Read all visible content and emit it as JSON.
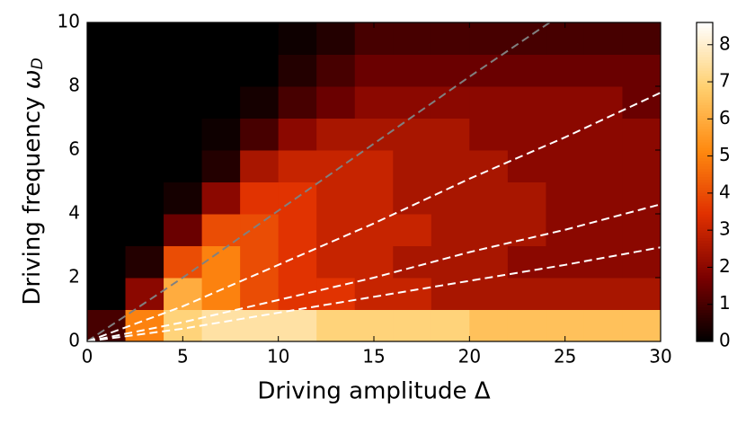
{
  "chart_data": {
    "type": "heatmap",
    "xlabel": "Driving amplitude Δ",
    "ylabel": {
      "text": "Driving frequency",
      "symbol": "ω",
      "subscript": "D"
    },
    "xbins": [
      0,
      2,
      4,
      6,
      8,
      10,
      12,
      14,
      16,
      18,
      20,
      22,
      24,
      26,
      28,
      30
    ],
    "ybins": [
      0,
      1,
      2,
      3,
      4,
      5,
      6,
      7,
      8,
      9,
      10
    ],
    "z": [
      [
        1,
        5,
        7,
        7.5,
        7.5,
        7.5,
        7,
        7,
        7,
        7,
        6.5,
        6.5,
        6.5,
        6.5,
        6.5
      ],
      [
        0,
        2,
        6,
        5,
        4,
        3.5,
        3.5,
        3,
        3,
        2.5,
        2.5,
        2.5,
        2.5,
        2.5,
        2.5
      ],
      [
        0,
        0.5,
        4,
        5,
        4,
        3.5,
        3,
        3,
        2.5,
        2.5,
        2.5,
        2,
        2,
        2,
        2
      ],
      [
        0,
        0,
        1.5,
        4,
        4,
        3.5,
        3,
        3,
        3,
        2.5,
        2.5,
        2.5,
        2,
        2,
        2
      ],
      [
        0,
        0,
        0.3,
        2,
        3.5,
        3.5,
        3,
        3,
        2.5,
        2.5,
        2.5,
        2.5,
        2,
        2,
        2
      ],
      [
        0,
        0,
        0,
        0.5,
        2.5,
        3,
        3,
        3,
        2.5,
        2.5,
        2.5,
        2,
        2,
        2,
        2
      ],
      [
        0,
        0,
        0,
        0.2,
        1,
        2,
        2.5,
        2.5,
        2.5,
        2.5,
        2,
        2,
        2,
        2,
        2
      ],
      [
        0,
        0,
        0,
        0,
        0.3,
        1,
        1.5,
        2,
        2,
        2,
        2,
        2,
        2,
        2,
        1.5
      ],
      [
        0,
        0,
        0,
        0,
        0,
        0.5,
        1,
        1.5,
        1.5,
        1.5,
        1.5,
        1.5,
        1.5,
        1.5,
        1.5
      ],
      [
        0,
        0,
        0,
        0,
        0,
        0.2,
        0.5,
        1,
        1,
        1,
        1,
        1,
        1,
        1,
        1
      ]
    ],
    "colormap": [
      "#000000",
      "#7a0000",
      "#e03000",
      "#ff8a10",
      "#ffd070",
      "#ffffff"
    ],
    "lines": [
      {
        "color": "#808080",
        "x": [
          0,
          5,
          10,
          15,
          20,
          24.2
        ],
        "y": [
          0,
          2.0,
          4.1,
          6.2,
          8.3,
          10
        ]
      },
      {
        "color": "#ffffff",
        "x": [
          0,
          5,
          10,
          15,
          20,
          25,
          30
        ],
        "y": [
          0,
          1.1,
          2.4,
          3.7,
          5.1,
          6.4,
          7.8
        ]
      },
      {
        "color": "#ffffff",
        "x": [
          0,
          5,
          10,
          15,
          20,
          25,
          30
        ],
        "y": [
          0,
          0.6,
          1.3,
          2.0,
          2.8,
          3.5,
          4.3
        ]
      },
      {
        "color": "#ffffff",
        "x": [
          0,
          5,
          10,
          15,
          20,
          25,
          30
        ],
        "y": [
          0,
          0.4,
          0.9,
          1.4,
          1.9,
          2.4,
          2.95
        ]
      }
    ],
    "xlim": [
      0,
      30
    ],
    "xticks": [
      0,
      5,
      10,
      15,
      20,
      25,
      30
    ],
    "ylim": [
      0,
      10
    ],
    "yticks": [
      0,
      2,
      4,
      6,
      8,
      10
    ],
    "clim": [
      0,
      8.6
    ],
    "cticks": [
      0,
      1,
      2,
      3,
      4,
      5,
      6,
      7,
      8
    ]
  }
}
